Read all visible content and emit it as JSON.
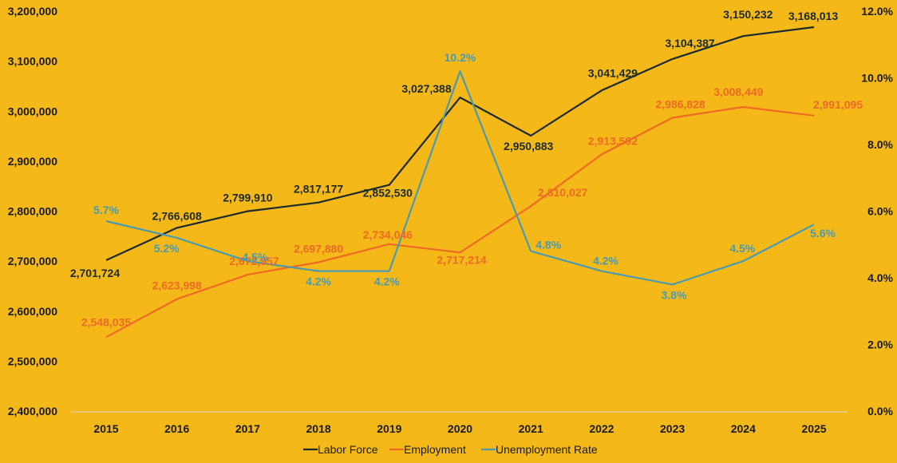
{
  "chart_data": {
    "type": "line",
    "categories": [
      "2015",
      "2016",
      "2017",
      "2018",
      "2019",
      "2020",
      "2021",
      "2022",
      "2023",
      "2024",
      "2025"
    ],
    "ylim": [
      2400000,
      3200000
    ],
    "y_ticks": [
      "2,400,000",
      "2,500,000",
      "2,600,000",
      "2,700,000",
      "2,800,000",
      "2,900,000",
      "3,000,000",
      "3,100,000",
      "3,200,000"
    ],
    "y2lim": [
      0,
      12
    ],
    "y2_ticks": [
      "0.0%",
      "2.0%",
      "4.0%",
      "6.0%",
      "8.0%",
      "10.0%",
      "12.0%"
    ],
    "grid": false,
    "legend_position": "bottom",
    "background": "#F5B819",
    "series": [
      {
        "name": "Labor Force",
        "axis": "left",
        "color": "#1B2A2A",
        "values": [
          2701724,
          2766608,
          2799910,
          2817177,
          2852530,
          3027388,
          2950883,
          3041429,
          3104387,
          3150232,
          3168013
        ],
        "labels": [
          "2,701,724",
          "2,766,608",
          "2,799,910",
          "2,817,177",
          "2,852,530",
          "3,027,388",
          "2,950,883",
          "3,041,429",
          "3,104,387",
          "3,150,232",
          "3,168,013"
        ]
      },
      {
        "name": "Employment",
        "axis": "left",
        "color": "#EE6A24",
        "values": [
          2548035,
          2623998,
          2672857,
          2697880,
          2734046,
          2717214,
          2810027,
          2913592,
          2986828,
          3008449,
          2991095
        ],
        "labels": [
          "2,548,035",
          "2,623,998",
          "2,672,857",
          "2,697,880",
          "2,734,046",
          "2,717,214",
          "2,810,027",
          "2,913,592",
          "2,986,828",
          "3,008,449",
          "2,991,095"
        ]
      },
      {
        "name": "Unemployment Rate",
        "axis": "right",
        "color": "#4A9AB0",
        "values": [
          5.7,
          5.2,
          4.5,
          4.2,
          4.2,
          10.2,
          4.8,
          4.2,
          3.8,
          4.5,
          5.6
        ],
        "labels": [
          "5.7%",
          "5.2%",
          "4.5%",
          "4.2%",
          "4.2%",
          "10.2%",
          "4.8%",
          "4.2%",
          "3.8%",
          "4.5%",
          "5.6%"
        ]
      }
    ]
  }
}
